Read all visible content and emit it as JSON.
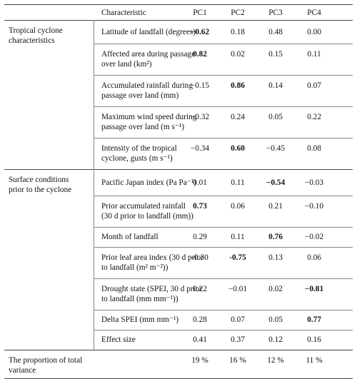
{
  "header": {
    "characteristic": "Characteristic",
    "pcs": [
      "PC1",
      "PC2",
      "PC3",
      "PC4"
    ]
  },
  "groups": [
    {
      "label_lines": [
        "Tropical cyclone",
        "characteristics"
      ]
    },
    {
      "label_lines": [
        "Surface conditions",
        "prior to the cyclone"
      ]
    },
    {
      "label_lines": [
        "The proportion of total",
        "variance"
      ]
    }
  ],
  "rows": [
    {
      "label_lines": [
        "Latitude of landfall (degrees)"
      ],
      "values": [
        "−0.62",
        "0.18",
        "0.48",
        "0.00"
      ],
      "bold": [
        true,
        false,
        false,
        false
      ]
    },
    {
      "label_lines": [
        "Affected area during passage",
        "over land (km²)"
      ],
      "values": [
        "0.82",
        "0.02",
        "0.15",
        "0.11"
      ],
      "bold": [
        true,
        false,
        false,
        false
      ]
    },
    {
      "label_lines": [
        "Accumulated rainfall during",
        "passage over land (mm)"
      ],
      "values": [
        "−0.15",
        "0.86",
        "0.14",
        "0.07"
      ],
      "bold": [
        false,
        true,
        false,
        false
      ]
    },
    {
      "label_lines": [
        "Maximum wind speed during",
        "passage over land (m s⁻¹)"
      ],
      "values": [
        "−0.32",
        "0.24",
        "0.05",
        "0.22"
      ],
      "bold": [
        false,
        false,
        false,
        false
      ]
    },
    {
      "label_lines": [
        "Intensity of the tropical",
        "cyclone, gusts (m s⁻¹)"
      ],
      "values": [
        "−0.34",
        "0.60",
        "−0.45",
        "0.08"
      ],
      "bold": [
        false,
        true,
        false,
        false
      ]
    },
    {
      "label_lines": [
        "Pacific Japan index (Pa Pa⁻¹)"
      ],
      "values": [
        "0.01",
        "0.11",
        "−0.54",
        "−0.03"
      ],
      "bold": [
        false,
        false,
        true,
        false
      ]
    },
    {
      "label_lines": [
        "Prior accumulated rainfall",
        "(30 d prior to landfall (mm))"
      ],
      "values": [
        "0.73",
        "0.06",
        "0.21",
        "−0.10"
      ],
      "bold": [
        true,
        false,
        false,
        false
      ]
    },
    {
      "label_lines": [
        "Month of landfall"
      ],
      "values": [
        "0.29",
        "0.11",
        "0.76",
        "−0.02"
      ],
      "bold": [
        false,
        false,
        true,
        false
      ]
    },
    {
      "label_lines": [
        "Prior leaf area index (30 d prior",
        "to landfall (m² m⁻²))"
      ],
      "values": [
        "-0.30",
        "-0.75",
        "0.13",
        "0.06"
      ],
      "bold": [
        false,
        true,
        false,
        false
      ]
    },
    {
      "label_lines": [
        "Drought state (SPEI, 30 d prior",
        "to landfall (mm mm⁻¹))"
      ],
      "values": [
        "0.22",
        "−0.01",
        "0.02",
        "−0.81"
      ],
      "bold": [
        false,
        false,
        false,
        true
      ]
    },
    {
      "label_lines": [
        "Delta SPEI (mm mm⁻¹)"
      ],
      "values": [
        "0.28",
        "0.07",
        "0.05",
        "0.77"
      ],
      "bold": [
        false,
        false,
        false,
        true
      ]
    },
    {
      "label_lines": [
        "Effect size"
      ],
      "values": [
        "0.41",
        "0.37",
        "0.12",
        "0.16"
      ],
      "bold": [
        false,
        false,
        false,
        false
      ]
    }
  ],
  "variance": {
    "values": [
      "19 %",
      "16 %",
      "12 %",
      "11 %"
    ]
  }
}
